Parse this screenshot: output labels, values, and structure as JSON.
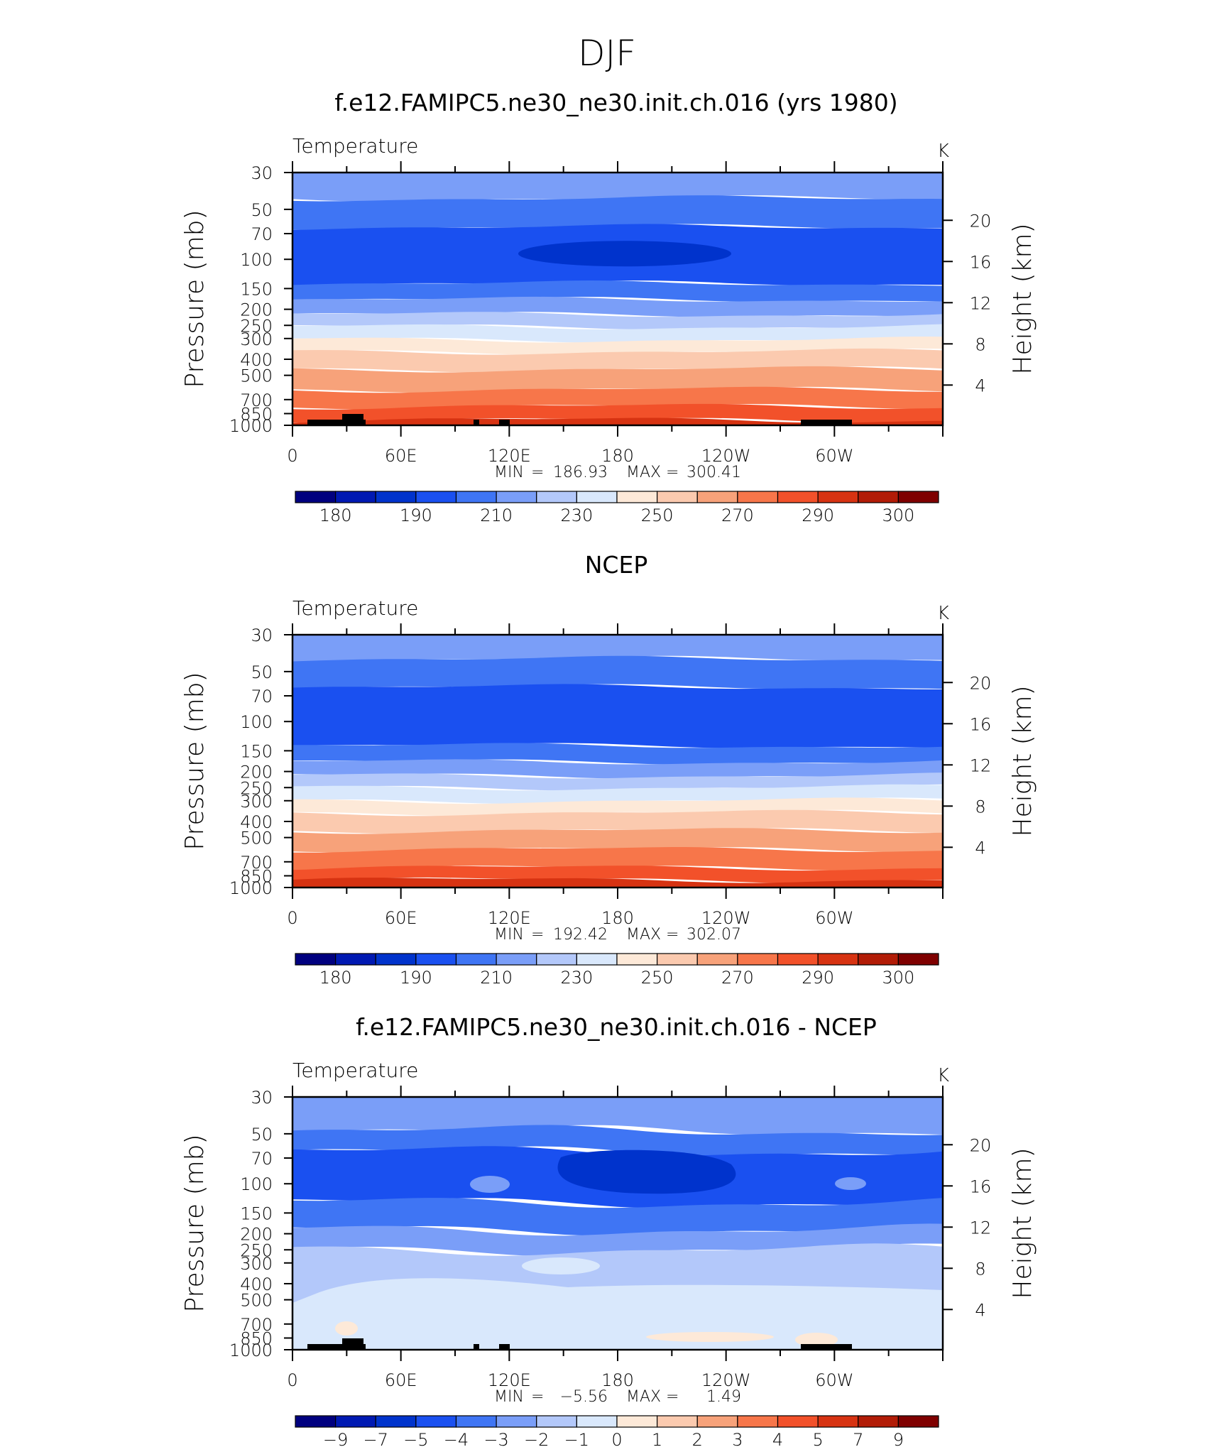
{
  "figure": {
    "title": "DJF"
  },
  "chart_data": [
    {
      "type": "heatmap",
      "title": "f.e12.FAMIPC5.ne30_ne30.init.ch.016 (yrs 1980)",
      "variable_label": "Temperature",
      "units": "K",
      "ylabel": "Pressure  (mb)",
      "ylabel_right": "Height  (km)",
      "x_ticks": [
        "0",
        "60E",
        "120E",
        "180",
        "120W",
        "60W"
      ],
      "y_ticks": [
        "30",
        "50",
        "70",
        "100",
        "150",
        "200",
        "250",
        "300",
        "400",
        "500",
        "700",
        "850",
        "1000"
      ],
      "y_right_ticks": [
        "20",
        "16",
        "12",
        "8",
        "4"
      ],
      "stats": {
        "min_label": "MIN",
        "min_value": "186.93",
        "max_label": "MAX",
        "max_value": "300.41"
      },
      "colorbar": {
        "labels": [
          "180",
          "190",
          "210",
          "230",
          "250",
          "270",
          "290",
          "300"
        ],
        "colors": [
          "#00007f",
          "#0019b2",
          "#0033cc",
          "#1a50f0",
          "#3f75f4",
          "#7a9ef8",
          "#b3c8fa",
          "#d9e8fc",
          "#fde9d8",
          "#fbcaaf",
          "#f7a27a",
          "#f7764a",
          "#f2512a",
          "#d73312",
          "#b21c07",
          "#7f0000"
        ]
      }
    },
    {
      "type": "heatmap",
      "title": "NCEP",
      "variable_label": "Temperature",
      "units": "K",
      "ylabel": "Pressure  (mb)",
      "ylabel_right": "Height  (km)",
      "x_ticks": [
        "0",
        "60E",
        "120E",
        "180",
        "120W",
        "60W"
      ],
      "y_ticks": [
        "30",
        "50",
        "70",
        "100",
        "150",
        "200",
        "250",
        "300",
        "400",
        "500",
        "700",
        "850",
        "1000"
      ],
      "y_right_ticks": [
        "20",
        "16",
        "12",
        "8",
        "4"
      ],
      "stats": {
        "min_label": "MIN",
        "min_value": "192.42",
        "max_label": "MAX",
        "max_value": "302.07"
      },
      "colorbar": {
        "labels": [
          "180",
          "190",
          "210",
          "230",
          "250",
          "270",
          "290",
          "300"
        ],
        "colors": [
          "#00007f",
          "#0019b2",
          "#0033cc",
          "#1a50f0",
          "#3f75f4",
          "#7a9ef8",
          "#b3c8fa",
          "#d9e8fc",
          "#fde9d8",
          "#fbcaaf",
          "#f7a27a",
          "#f7764a",
          "#f2512a",
          "#d73312",
          "#b21c07",
          "#7f0000"
        ]
      }
    },
    {
      "type": "heatmap",
      "title": "f.e12.FAMIPC5.ne30_ne30.init.ch.016 - NCEP",
      "variable_label": "Temperature",
      "units": "K",
      "ylabel": "Pressure  (mb)",
      "ylabel_right": "Height  (km)",
      "x_ticks": [
        "0",
        "60E",
        "120E",
        "180",
        "120W",
        "60W"
      ],
      "y_ticks": [
        "30",
        "50",
        "70",
        "100",
        "150",
        "200",
        "250",
        "300",
        "400",
        "500",
        "700",
        "850",
        "1000"
      ],
      "y_right_ticks": [
        "20",
        "16",
        "12",
        "8",
        "4"
      ],
      "stats": {
        "min_label": "MIN",
        "min_value": "−5.56",
        "max_label": "MAX",
        "max_value": "1.49"
      },
      "colorbar": {
        "labels": [
          "−9",
          "−7",
          "−5",
          "−4",
          "−3",
          "−2",
          "−1",
          "0",
          "1",
          "2",
          "3",
          "4",
          "5",
          "7",
          "9"
        ],
        "colors": [
          "#00007f",
          "#0019b2",
          "#0033cc",
          "#1a50f0",
          "#3f75f4",
          "#7a9ef8",
          "#b3c8fa",
          "#d9e8fc",
          "#fde9d8",
          "#fbcaaf",
          "#f7a27a",
          "#f7764a",
          "#f2512a",
          "#d73312",
          "#b21c07",
          "#7f0000"
        ]
      }
    }
  ]
}
